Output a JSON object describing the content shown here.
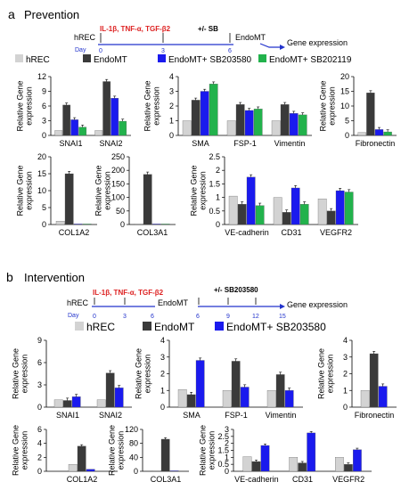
{
  "colors": {
    "hREC": "#d3d3d3",
    "EndoMT": "#3a3a3a",
    "SB203580": "#1a1aee",
    "SB202119": "#22b24c",
    "timeline": "#2233cc",
    "treatment": "#dd2222"
  },
  "panel_a": {
    "letter": "a",
    "title": "Prevention",
    "timeline": {
      "treatment": "IL-1β, TNF-α, TGF-β2",
      "inhibitor": "+/-  SB",
      "start": "hREC",
      "end": "EndoMT",
      "readout": "Gene expression",
      "day_label": "Day",
      "ticks": [
        "0",
        "3",
        "6"
      ]
    },
    "legend": [
      "hREC",
      "EndoMT",
      "EndoMT+ SB203580",
      "EndoMT+ SB202119"
    ]
  },
  "panel_b": {
    "letter": "b",
    "title": "Intervention",
    "timeline": {
      "treatment": "IL-1β, TNF-α, TGF-β2",
      "inhibitor": "+/-  SB203580",
      "start": "hREC",
      "mid": "EndoMT",
      "readout": "Gene expression",
      "day_label": "Day",
      "ticks": [
        "0",
        "3",
        "6",
        "6",
        "9",
        "12",
        "15"
      ]
    },
    "legend": [
      "hREC",
      "EndoMT",
      "EndoMT+ SB203580"
    ]
  },
  "chart_data": [
    {
      "id": "a1",
      "type": "bar",
      "ylabel": "Relative Gene expression",
      "ylim": [
        0,
        12
      ],
      "yticks": [
        "0",
        "3",
        "6",
        "9",
        "12"
      ],
      "categories": [
        "SNAI1",
        "SNAI2"
      ],
      "series": [
        {
          "name": "hREC",
          "values": [
            1,
            1
          ]
        },
        {
          "name": "EndoMT",
          "values": [
            6.2,
            11
          ]
        },
        {
          "name": "EndoMT+ SB203580",
          "values": [
            3.2,
            7.6
          ]
        },
        {
          "name": "EndoMT+ SB202119",
          "values": [
            1.7,
            2.9
          ]
        }
      ]
    },
    {
      "id": "a2",
      "type": "bar",
      "ylabel": "Relative Gene expression",
      "ylim": [
        0,
        4
      ],
      "yticks": [
        "0",
        "1",
        "2",
        "3",
        "4"
      ],
      "categories": [
        "SMA",
        "FSP-1",
        "Vimentin"
      ],
      "series": [
        {
          "name": "hREC",
          "values": [
            1,
            1,
            1
          ]
        },
        {
          "name": "EndoMT",
          "values": [
            2.4,
            2.1,
            2.1
          ]
        },
        {
          "name": "EndoMT+ SB203580",
          "values": [
            3.0,
            1.7,
            1.5
          ]
        },
        {
          "name": "EndoMT+ SB202119",
          "values": [
            3.5,
            1.8,
            1.4
          ]
        }
      ]
    },
    {
      "id": "a3",
      "type": "bar",
      "ylabel": "Relative Gene expression",
      "ylim": [
        0,
        20
      ],
      "yticks": [
        "0",
        "5",
        "10",
        "15",
        "20"
      ],
      "categories": [
        "Fibronectin"
      ],
      "series": [
        {
          "name": "hREC",
          "values": [
            1
          ]
        },
        {
          "name": "EndoMT",
          "values": [
            14.5
          ]
        },
        {
          "name": "EndoMT+ SB203580",
          "values": [
            2.0
          ]
        },
        {
          "name": "EndoMT+ SB202119",
          "values": [
            1.2
          ]
        }
      ]
    },
    {
      "id": "a4",
      "type": "bar",
      "ylabel": "Relative Gene expression",
      "ylim": [
        0,
        20
      ],
      "yticks": [
        "0",
        "5",
        "10",
        "15",
        "20"
      ],
      "categories": [
        "COL1A2"
      ],
      "series": [
        {
          "name": "hREC",
          "values": [
            1
          ]
        },
        {
          "name": "EndoMT",
          "values": [
            15
          ]
        },
        {
          "name": "EndoMT+ SB203580",
          "values": [
            0.15
          ]
        },
        {
          "name": "EndoMT+ SB202119",
          "values": [
            0.1
          ]
        }
      ]
    },
    {
      "id": "a5",
      "type": "bar",
      "ylabel": "Relative Gene expression",
      "ylim": [
        0,
        250
      ],
      "yticks": [
        "0",
        "50",
        "100",
        "150",
        "200",
        "250"
      ],
      "categories": [
        "COL3A1"
      ],
      "series": [
        {
          "name": "hREC",
          "values": [
            1
          ]
        },
        {
          "name": "EndoMT",
          "values": [
            185
          ]
        },
        {
          "name": "EndoMT+ SB203580",
          "values": [
            1
          ]
        },
        {
          "name": "EndoMT+ SB202119",
          "values": [
            1
          ]
        }
      ]
    },
    {
      "id": "a6",
      "type": "bar",
      "ylabel": "Relative Gene expression",
      "ylim": [
        0,
        2.5
      ],
      "yticks": [
        "0",
        "0.5",
        "1",
        "1.5",
        "2",
        "2.5"
      ],
      "categories": [
        "VE-cadherin",
        "CD31",
        "VEGFR2"
      ],
      "series": [
        {
          "name": "hREC",
          "values": [
            1.05,
            1.0,
            0.95
          ]
        },
        {
          "name": "EndoMT",
          "values": [
            0.75,
            0.45,
            0.5
          ]
        },
        {
          "name": "EndoMT+ SB203580",
          "values": [
            1.75,
            1.35,
            1.25
          ]
        },
        {
          "name": "EndoMT+ SB202119",
          "values": [
            0.7,
            0.75,
            1.2
          ]
        }
      ]
    },
    {
      "id": "b1",
      "type": "bar",
      "ylabel": "Relative Gene expression",
      "ylim": [
        0,
        9
      ],
      "yticks": [
        "0",
        "3",
        "6",
        "9"
      ],
      "categories": [
        "SNAI1",
        "SNAI2"
      ],
      "series": [
        {
          "name": "hREC",
          "values": [
            1,
            1
          ]
        },
        {
          "name": "EndoMT",
          "values": [
            0.9,
            4.6
          ]
        },
        {
          "name": "EndoMT+ SB203580",
          "values": [
            1.4,
            2.6
          ]
        }
      ]
    },
    {
      "id": "b2",
      "type": "bar",
      "ylabel": "Relative Gene expression",
      "ylim": [
        0,
        4
      ],
      "yticks": [
        "0",
        "1",
        "2",
        "3",
        "4"
      ],
      "categories": [
        "SMA",
        "FSP-1",
        "Vimentin"
      ],
      "series": [
        {
          "name": "hREC",
          "values": [
            1.05,
            1.0,
            1.0
          ]
        },
        {
          "name": "EndoMT",
          "values": [
            0.75,
            2.75,
            1.95
          ]
        },
        {
          "name": "EndoMT+ SB203580",
          "values": [
            2.8,
            1.2,
            1.0
          ]
        }
      ]
    },
    {
      "id": "b3",
      "type": "bar",
      "ylabel": "Relative Gene expression",
      "ylim": [
        0,
        4
      ],
      "yticks": [
        "0",
        "1",
        "2",
        "3",
        "4"
      ],
      "categories": [
        "Fibronectin"
      ],
      "series": [
        {
          "name": "hREC",
          "values": [
            1.0
          ]
        },
        {
          "name": "EndoMT",
          "values": [
            3.2
          ]
        },
        {
          "name": "EndoMT+ SB203580",
          "values": [
            1.25
          ]
        }
      ]
    },
    {
      "id": "b4",
      "type": "bar",
      "ylabel": "Relative Gene expression",
      "ylim": [
        0,
        6
      ],
      "yticks": [
        "0",
        "2",
        "4",
        "6"
      ],
      "categories": [
        "COL1A2"
      ],
      "series": [
        {
          "name": "hREC",
          "values": [
            1.0
          ]
        },
        {
          "name": "EndoMT",
          "values": [
            3.6
          ]
        },
        {
          "name": "EndoMT+ SB203580",
          "values": [
            0.3
          ]
        }
      ]
    },
    {
      "id": "b5",
      "type": "bar",
      "ylabel": "Relative Gene expression",
      "ylim": [
        0,
        120
      ],
      "yticks": [
        "0",
        "40",
        "80",
        "120"
      ],
      "categories": [
        "COL3A1"
      ],
      "series": [
        {
          "name": "hREC",
          "values": [
            1
          ]
        },
        {
          "name": "EndoMT",
          "values": [
            92
          ]
        },
        {
          "name": "EndoMT+ SB203580",
          "values": [
            1
          ]
        }
      ]
    },
    {
      "id": "b6",
      "type": "bar",
      "ylabel": "Relative Gene expression",
      "ylim": [
        0,
        3
      ],
      "yticks": [
        "0",
        "0.5",
        "1",
        "1.5",
        "2",
        "2.5",
        "3"
      ],
      "categories": [
        "VE-cadherin",
        "CD31",
        "VEGFR2"
      ],
      "series": [
        {
          "name": "hREC",
          "values": [
            1.05,
            1.0,
            1.0
          ]
        },
        {
          "name": "EndoMT",
          "values": [
            0.7,
            0.6,
            0.5
          ]
        },
        {
          "name": "EndoMT+ SB203580",
          "values": [
            1.85,
            2.75,
            1.55
          ]
        }
      ]
    }
  ]
}
